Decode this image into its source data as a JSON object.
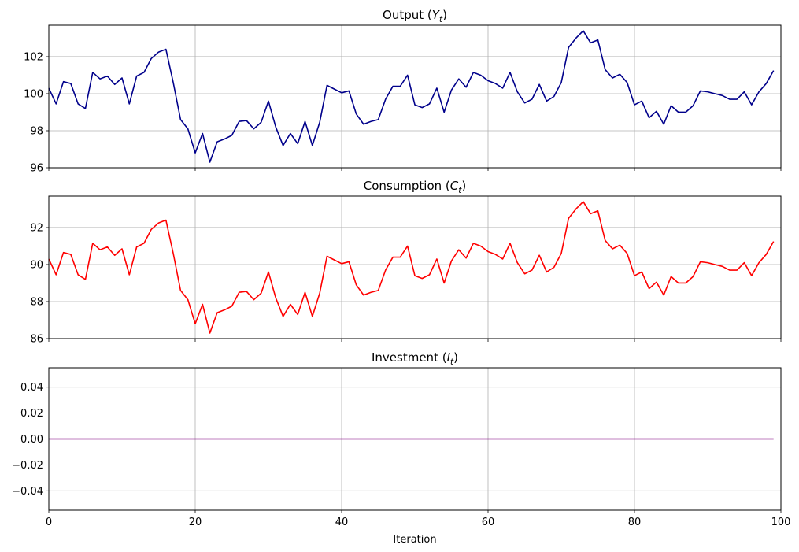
{
  "chart_data": [
    {
      "type": "line",
      "title_main": "Output (",
      "title_var": "Y",
      "title_sub": "t",
      "title_close": ")",
      "xlim": [
        0,
        100
      ],
      "ylim": [
        96,
        103.7
      ],
      "yticks": [
        96,
        98,
        100,
        102
      ],
      "ytick_labels": [
        "96",
        "98",
        "100",
        "102"
      ],
      "grid": true,
      "series": [
        {
          "name": "Output",
          "color": "#00008b",
          "values": [
            100.3,
            99.45,
            100.65,
            100.55,
            99.45,
            99.2,
            101.15,
            100.8,
            100.95,
            100.5,
            100.85,
            99.45,
            100.95,
            101.15,
            101.9,
            102.25,
            102.4,
            100.6,
            98.6,
            98.1,
            96.8,
            97.85,
            96.3,
            97.4,
            97.55,
            97.75,
            98.5,
            98.55,
            98.1,
            98.45,
            99.6,
            98.2,
            97.2,
            97.85,
            97.3,
            98.5,
            97.2,
            98.45,
            100.45,
            100.25,
            100.05,
            100.15,
            98.9,
            98.35,
            98.5,
            98.6,
            99.7,
            100.4,
            100.4,
            101.0,
            99.4,
            99.25,
            99.45,
            100.3,
            99.0,
            100.2,
            100.8,
            100.35,
            101.15,
            101.0,
            100.7,
            100.55,
            100.3,
            101.15,
            100.1,
            99.5,
            99.7,
            100.5,
            99.6,
            99.85,
            100.6,
            102.5,
            103.0,
            103.4,
            102.75,
            102.9,
            101.3,
            100.85,
            101.05,
            100.6,
            99.4,
            99.6,
            98.7,
            99.05,
            98.35,
            99.35,
            99.0,
            99.0,
            99.35,
            100.15,
            100.1,
            100.0,
            99.9,
            99.7,
            99.7,
            100.1,
            99.4,
            100.1,
            100.55,
            101.25
          ]
        }
      ]
    },
    {
      "type": "line",
      "title_main": "Consumption (",
      "title_var": "C",
      "title_sub": "t",
      "title_close": ")",
      "xlim": [
        0,
        100
      ],
      "ylim": [
        86,
        93.7
      ],
      "yticks": [
        86,
        88,
        90,
        92
      ],
      "ytick_labels": [
        "86",
        "88",
        "90",
        "92"
      ],
      "grid": true,
      "series": [
        {
          "name": "Consumption",
          "color": "#ff0000",
          "values": [
            90.3,
            89.45,
            90.65,
            90.55,
            89.45,
            89.2,
            91.15,
            90.8,
            90.95,
            90.5,
            90.85,
            89.45,
            90.95,
            91.15,
            91.9,
            92.25,
            92.4,
            90.6,
            88.6,
            88.1,
            86.8,
            87.85,
            86.3,
            87.4,
            87.55,
            87.75,
            88.5,
            88.55,
            88.1,
            88.45,
            89.6,
            88.2,
            87.2,
            87.85,
            87.3,
            88.5,
            87.2,
            88.45,
            90.45,
            90.25,
            90.05,
            90.15,
            88.9,
            88.35,
            88.5,
            88.6,
            89.7,
            90.4,
            90.4,
            91.0,
            89.4,
            89.25,
            89.45,
            90.3,
            89.0,
            90.2,
            90.8,
            90.35,
            91.15,
            91.0,
            90.7,
            90.55,
            90.3,
            91.15,
            90.1,
            89.5,
            89.7,
            90.5,
            89.6,
            89.85,
            90.6,
            92.5,
            93.0,
            93.4,
            92.75,
            92.9,
            91.3,
            90.85,
            91.05,
            90.6,
            89.4,
            89.6,
            88.7,
            89.05,
            88.35,
            89.35,
            89.0,
            89.0,
            89.35,
            90.15,
            90.1,
            90.0,
            89.9,
            89.7,
            89.7,
            90.1,
            89.4,
            90.1,
            90.55,
            91.25
          ]
        }
      ]
    },
    {
      "type": "line",
      "title_main": "Investment (",
      "title_var": "I",
      "title_sub": "t",
      "title_close": ")",
      "xlim": [
        0,
        100
      ],
      "ylim": [
        -0.055,
        0.055
      ],
      "yticks": [
        -0.04,
        -0.02,
        0.0,
        0.02,
        0.04
      ],
      "ytick_labels": [
        "−0.04",
        "−0.02",
        "0.00",
        "0.02",
        "0.04"
      ],
      "xticks": [
        0,
        20,
        40,
        60,
        80,
        100
      ],
      "xtick_labels": [
        "0",
        "20",
        "40",
        "60",
        "80",
        "100"
      ],
      "xlabel": "Iteration",
      "grid": true,
      "series": [
        {
          "name": "Investment",
          "color": "#800080",
          "values": [
            0,
            0,
            0,
            0,
            0,
            0,
            0,
            0,
            0,
            0,
            0,
            0,
            0,
            0,
            0,
            0,
            0,
            0,
            0,
            0,
            0,
            0,
            0,
            0,
            0,
            0,
            0,
            0,
            0,
            0,
            0,
            0,
            0,
            0,
            0,
            0,
            0,
            0,
            0,
            0,
            0,
            0,
            0,
            0,
            0,
            0,
            0,
            0,
            0,
            0,
            0,
            0,
            0,
            0,
            0,
            0,
            0,
            0,
            0,
            0,
            0,
            0,
            0,
            0,
            0,
            0,
            0,
            0,
            0,
            0,
            0,
            0,
            0,
            0,
            0,
            0,
            0,
            0,
            0,
            0,
            0,
            0,
            0,
            0,
            0,
            0,
            0,
            0,
            0,
            0,
            0,
            0,
            0,
            0,
            0,
            0,
            0,
            0,
            0,
            0
          ]
        }
      ]
    }
  ]
}
